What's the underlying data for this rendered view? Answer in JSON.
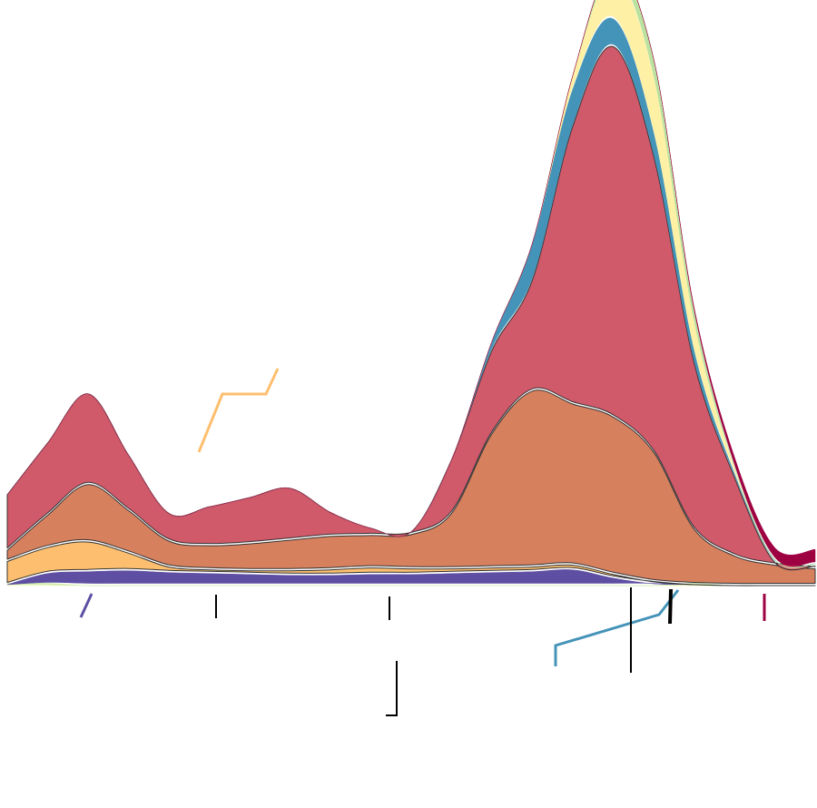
{
  "chart_data": {
    "type": "area",
    "layout": "streamgraph",
    "title": "",
    "xlabel": "",
    "ylabel": "",
    "grid": false,
    "legend": "none",
    "x": [
      0,
      1,
      2,
      3,
      4,
      5,
      6,
      7,
      8,
      9,
      10,
      11,
      12,
      13,
      14,
      15,
      16,
      17,
      18,
      19,
      20
    ],
    "series": [
      {
        "color": "#f7fbb0",
        "stroke": "none",
        "values": [
          0,
          0,
          0,
          0,
          0,
          0,
          0,
          0,
          0,
          0,
          0,
          0,
          0,
          0,
          0,
          0,
          0,
          0,
          0,
          0,
          0
        ]
      },
      {
        "color": "#cde9b0",
        "stroke": "none",
        "values": [
          0.1,
          0.1,
          0,
          0,
          0,
          0,
          0,
          0,
          0,
          0,
          0,
          0,
          0,
          0,
          0,
          0,
          0,
          0.1,
          0,
          0,
          0
        ]
      },
      {
        "color": "#5e4fa2",
        "stroke": "none",
        "values": [
          0,
          1.2,
          1.5,
          1.6,
          1.4,
          1.3,
          1.2,
          1.1,
          1.1,
          1.2,
          1.2,
          1.3,
          1.4,
          1.5,
          1.7,
          0.8,
          0.2,
          0,
          0,
          0,
          0
        ]
      },
      {
        "color": "#fdbf6f",
        "stroke": "#333333",
        "values": [
          2.5,
          2.8,
          3.2,
          1.9,
          0.6,
          0.4,
          0.4,
          0.5,
          0.6,
          0.7,
          0.6,
          0.5,
          0.5,
          0.5,
          0.5,
          0.4,
          0.2,
          0,
          0,
          0,
          0
        ]
      },
      {
        "color": "#d6805e",
        "stroke": "#333333",
        "values": [
          1.2,
          3.5,
          6.2,
          4.6,
          2.8,
          2.6,
          2.9,
          3.3,
          3.6,
          3.5,
          3.7,
          6.0,
          14.5,
          19.0,
          17.4,
          17.0,
          14.0,
          6.0,
          3.2,
          2.2,
          1.8
        ]
      },
      {
        "color": "#d0596a",
        "stroke": "#333333",
        "values": [
          6.0,
          7.8,
          9.8,
          6.0,
          3.0,
          4.2,
          5.0,
          5.6,
          2.6,
          0.8,
          0.3,
          5.8,
          9.0,
          12.0,
          30.0,
          40.0,
          32.0,
          18.0,
          8.5,
          0.3,
          0.3
        ]
      },
      {
        "color": "#4493b8",
        "stroke": "none",
        "values": [
          0,
          0,
          0,
          0,
          0,
          0,
          0,
          0,
          0,
          0,
          0,
          0,
          1.0,
          4.0,
          4.0,
          3.0,
          2.5,
          1.3,
          0.4,
          0.3,
          0.2
        ]
      },
      {
        "color": "#fef1a6",
        "stroke": "none",
        "values": [
          0,
          0,
          0,
          0,
          0,
          0,
          0,
          0,
          0,
          0,
          0,
          0,
          0,
          0,
          1.5,
          4.5,
          6.0,
          3.0,
          0.5,
          0,
          0
        ]
      },
      {
        "color": "#b9e1a0",
        "stroke": "none",
        "values": [
          0,
          0,
          0,
          0,
          0,
          0,
          0,
          0,
          0,
          0,
          0,
          0,
          0,
          0,
          0,
          1.2,
          2.0,
          1.2,
          0.3,
          0,
          0
        ]
      },
      {
        "color": "#9e0142",
        "stroke": "none",
        "values": [
          0,
          0,
          0,
          0,
          0,
          0,
          0,
          0,
          0,
          0,
          0,
          0,
          0,
          0,
          0,
          0,
          0,
          0.5,
          1.0,
          1.3,
          1.6
        ]
      }
    ],
    "annotations": [
      {
        "color": "#5e4fa2"
      },
      {
        "color": "#000000"
      },
      {
        "color": "#000000"
      },
      {
        "color": "#000000"
      },
      {
        "color": "#fdbf6f"
      },
      {
        "color": "#4493b8"
      },
      {
        "color": "#000000"
      },
      {
        "color": "#000000"
      },
      {
        "color": "#9e0142"
      }
    ]
  }
}
